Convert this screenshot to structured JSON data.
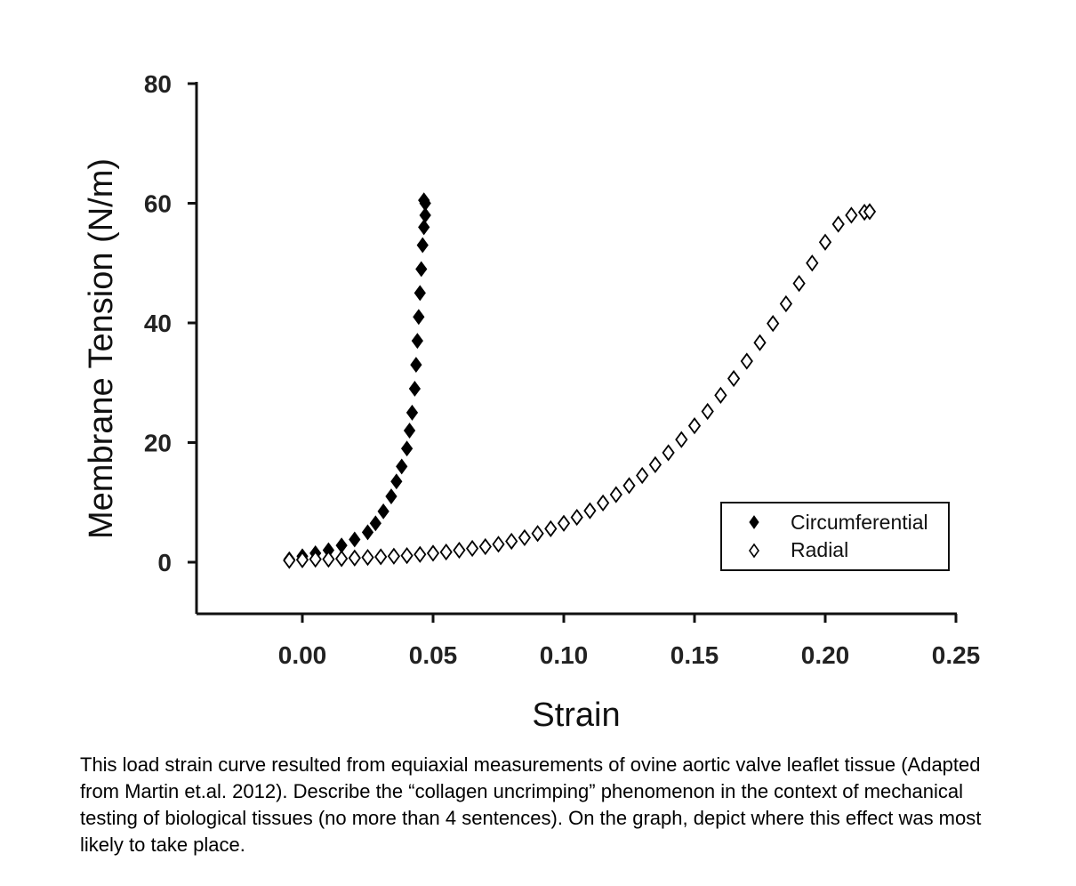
{
  "chart_data": {
    "type": "scatter",
    "xlabel": "Strain",
    "ylabel": "Membrane Tension (N/m)",
    "xlim": [
      -0.03,
      0.25
    ],
    "ylim": [
      -9,
      80
    ],
    "x_ticks": [
      "0.00",
      "0.05",
      "0.10",
      "0.15",
      "0.20",
      "0.25"
    ],
    "y_ticks": [
      "0",
      "20",
      "40",
      "60",
      "80"
    ],
    "grid": false,
    "legend_placement": "lower-right",
    "series": [
      {
        "name": "Circumferential",
        "marker": "filled-diamond",
        "color": "#000000",
        "x": [
          -0.005,
          0.0,
          0.005,
          0.01,
          0.015,
          0.02,
          0.025,
          0.028,
          0.031,
          0.034,
          0.036,
          0.038,
          0.04,
          0.041,
          0.042,
          0.043,
          0.0435,
          0.044,
          0.0445,
          0.045,
          0.0455,
          0.046,
          0.0465,
          0.047,
          0.047,
          0.0465
        ],
        "y": [
          0.5,
          1.0,
          1.5,
          2.0,
          2.8,
          3.8,
          5.0,
          6.5,
          8.5,
          11.0,
          13.5,
          16.0,
          19.0,
          22.0,
          25.0,
          29.0,
          33.0,
          37.0,
          41.0,
          45.0,
          49.0,
          53.0,
          56.0,
          58.0,
          60.0,
          60.5
        ]
      },
      {
        "name": "Radial",
        "marker": "open-diamond",
        "color": "#000000",
        "x": [
          -0.005,
          0.0,
          0.005,
          0.01,
          0.015,
          0.02,
          0.025,
          0.03,
          0.035,
          0.04,
          0.045,
          0.05,
          0.055,
          0.06,
          0.065,
          0.07,
          0.075,
          0.08,
          0.085,
          0.09,
          0.095,
          0.1,
          0.105,
          0.11,
          0.115,
          0.12,
          0.125,
          0.13,
          0.135,
          0.14,
          0.145,
          0.15,
          0.155,
          0.16,
          0.165,
          0.17,
          0.175,
          0.18,
          0.185,
          0.19,
          0.195,
          0.2,
          0.205,
          0.21,
          0.215,
          0.217
        ],
        "y": [
          0.3,
          0.4,
          0.5,
          0.5,
          0.6,
          0.7,
          0.8,
          0.9,
          1.0,
          1.1,
          1.3,
          1.5,
          1.7,
          2.0,
          2.3,
          2.6,
          3.0,
          3.5,
          4.1,
          4.8,
          5.6,
          6.5,
          7.5,
          8.6,
          9.9,
          11.3,
          12.8,
          14.5,
          16.3,
          18.3,
          20.5,
          22.8,
          25.2,
          27.9,
          30.7,
          33.6,
          36.7,
          39.9,
          43.2,
          46.6,
          50.0,
          53.5,
          56.5,
          58.0,
          58.5,
          58.6
        ]
      }
    ]
  },
  "caption": "This load strain curve resulted from equiaxial measurements of ovine aortic valve leaflet tissue (Adapted from Martin et.al. 2012). Describe the “collagen uncrimping” phenomenon in the context of mechanical testing of biological tissues (no more than 4 sentences). On the graph, depict where this effect was most likely to take place."
}
